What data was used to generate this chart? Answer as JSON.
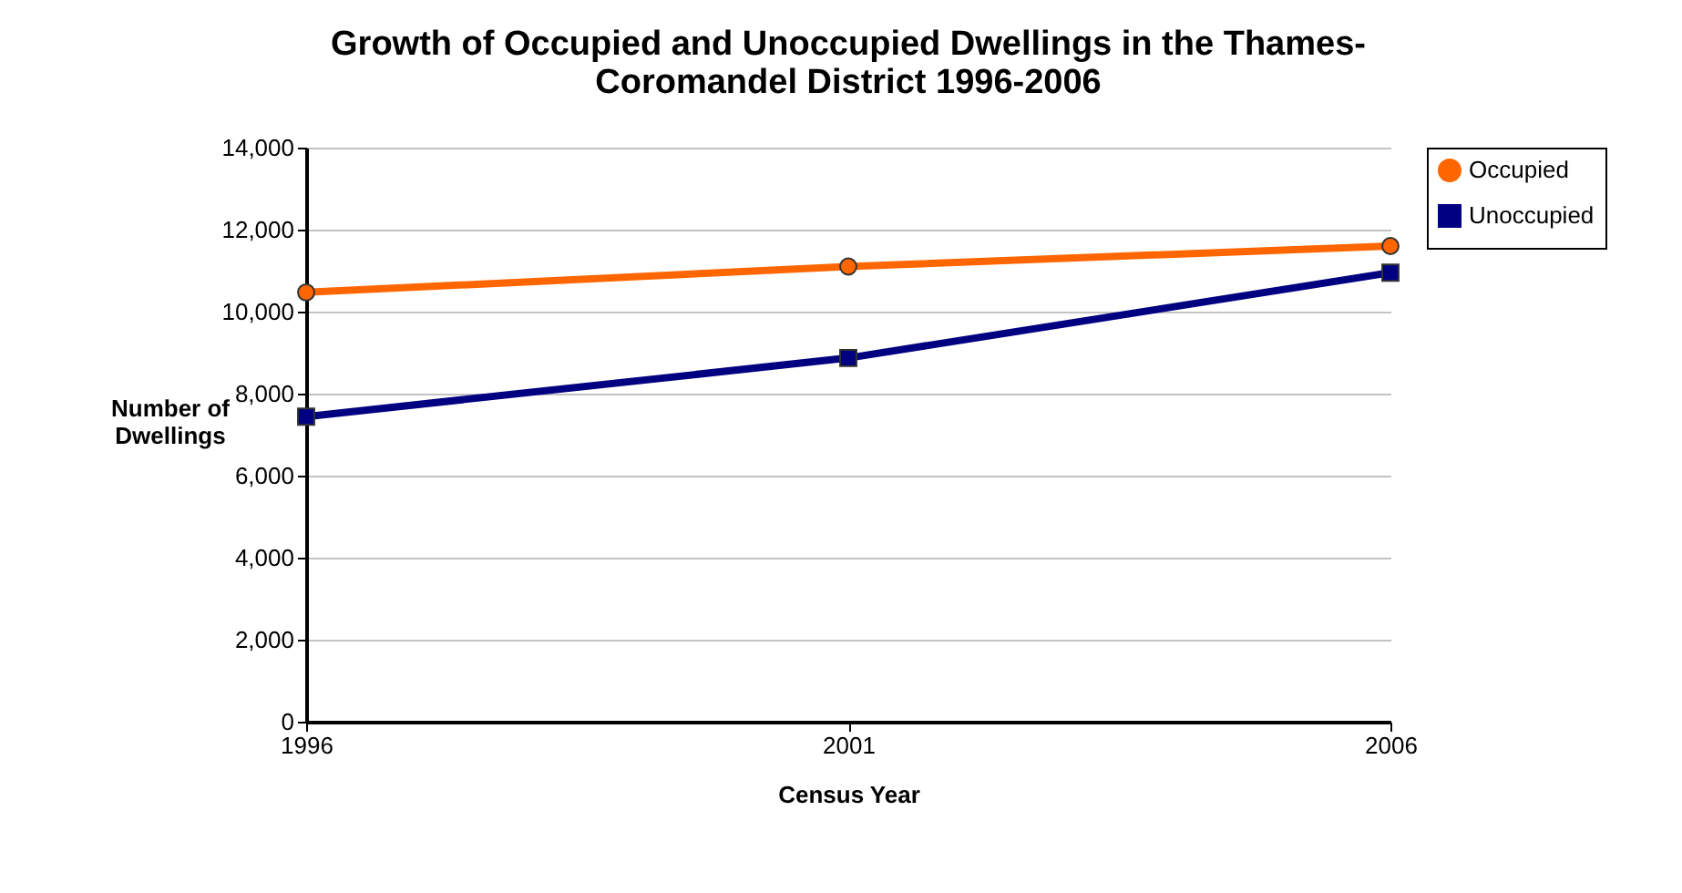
{
  "chart_data": {
    "type": "line",
    "title": "Growth of Occupied and Unoccupied Dwellings in the Thames-\nCoromandel District 1996-2006",
    "xlabel": "Census Year",
    "ylabel": "Number of\nDwellings",
    "x": [
      1996,
      2001,
      2006
    ],
    "xlim": [
      1996,
      2006
    ],
    "xticks": [
      1996,
      2001,
      2006
    ],
    "ylim": [
      0,
      14000
    ],
    "yticks": [
      {
        "value": 0,
        "label": "0"
      },
      {
        "value": 2000,
        "label": "2,000"
      },
      {
        "value": 4000,
        "label": "4,000"
      },
      {
        "value": 6000,
        "label": "6,000"
      },
      {
        "value": 8000,
        "label": "8,000"
      },
      {
        "value": 10000,
        "label": "10,000"
      },
      {
        "value": 12000,
        "label": "12,000"
      },
      {
        "value": 14000,
        "label": "14,000"
      }
    ],
    "series": [
      {
        "name": "Occupied",
        "color": "#ff6600",
        "marker": "circle",
        "values": [
          10470,
          11100,
          11600
        ]
      },
      {
        "name": "Unoccupied",
        "color": "#000080",
        "marker": "square",
        "values": [
          7440,
          8870,
          10950
        ]
      }
    ],
    "grid": "y",
    "legend": "right",
    "line_style": "solid"
  }
}
